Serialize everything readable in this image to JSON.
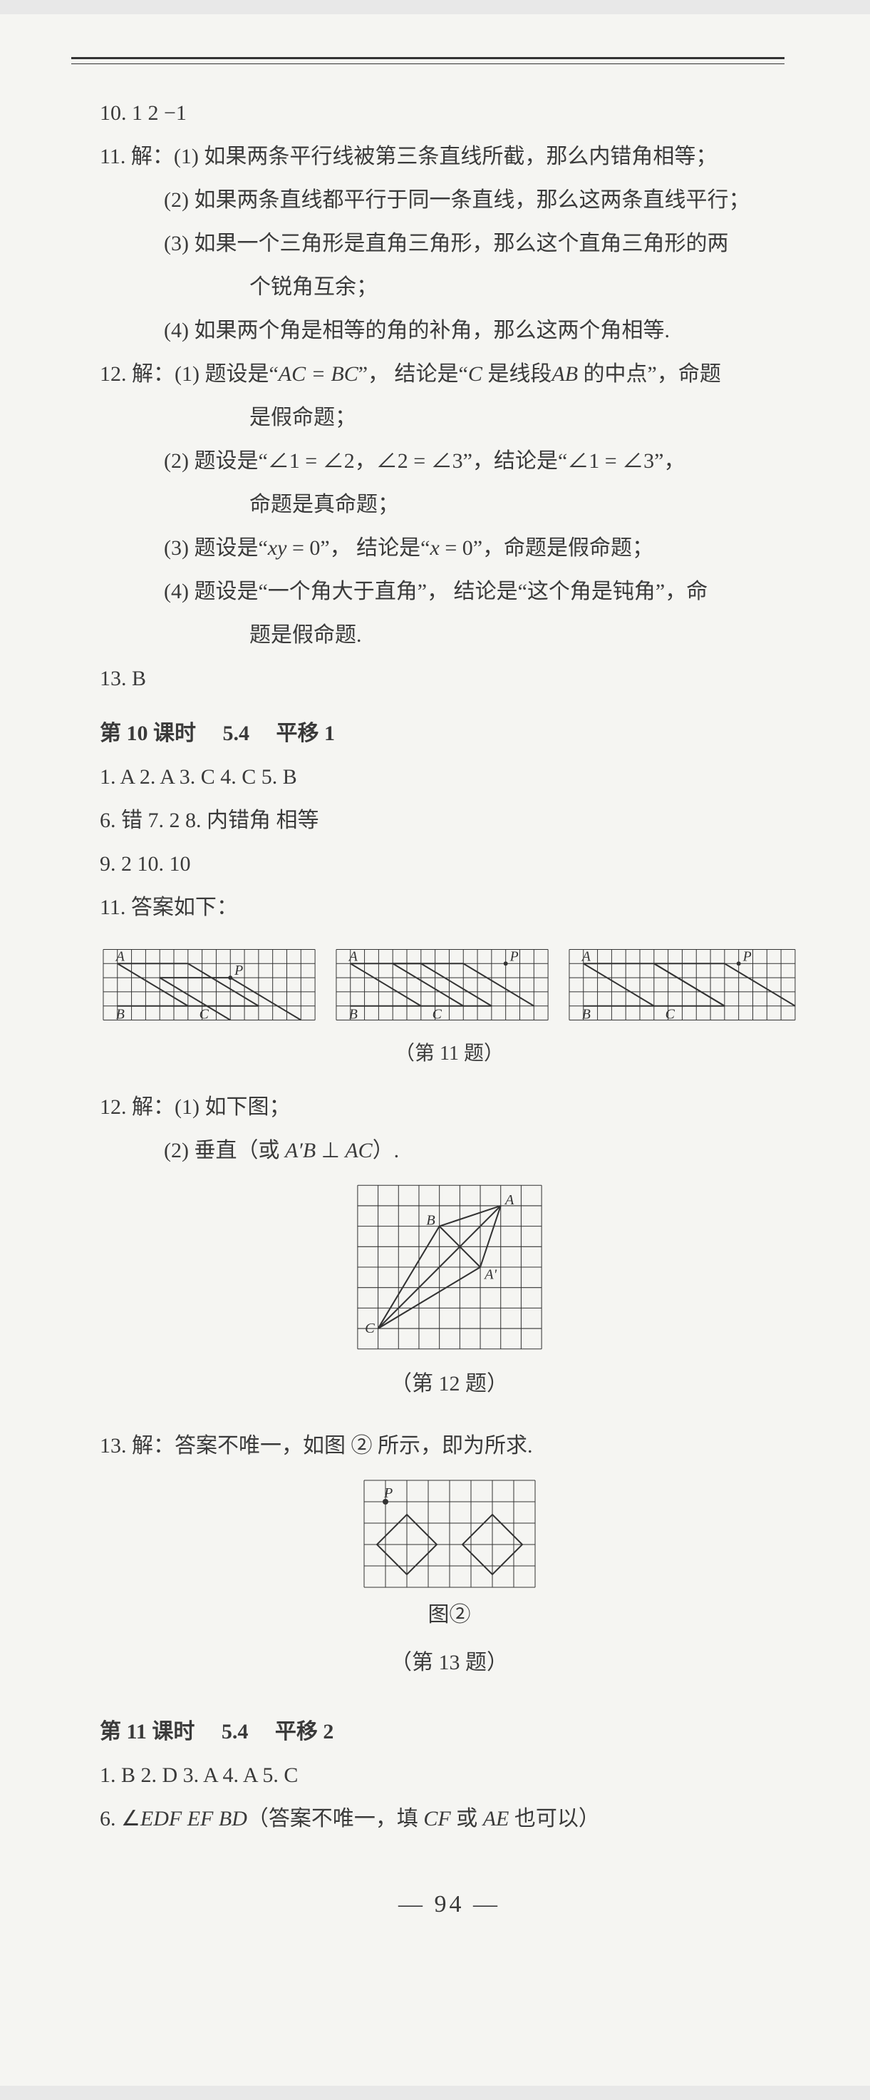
{
  "lines": {
    "l10": "10. 1   2   −1",
    "l11": "11. 解：(1) 如果两条平行线被第三条直线所截，那么内错角相等；",
    "l11_2": "(2) 如果两条直线都平行于同一条直线，那么这两条直线平行；",
    "l11_3": "(3) 如果一个三角形是直角三角形，那么这个直角三角形的两",
    "l11_3b": "个锐角互余；",
    "l11_4": "(4) 如果两个角是相等的角的补角，那么这两个角相等.",
    "l12a": "12. 解：(1) 题设是“",
    "l12a_eq": "AC = BC",
    "l12a_mid": "”，  结论是“",
    "l12a_c": "C",
    "l12a_mid2": " 是线段",
    "l12a_ab": "AB",
    "l12a_end": " 的中点”，命题",
    "l12a_2": "是假命题；",
    "l12b": "(2) 题设是“∠1 = ∠2，∠2 = ∠3”，结论是“∠1 = ∠3”，",
    "l12b_2": "命题是真命题；",
    "l12c": "(3) 题设是“",
    "l12c_xy": "xy",
    "l12c_mid": " = 0”，  结论是“",
    "l12c_x": "x",
    "l12c_end": " = 0”，命题是假命题；",
    "l12d": "(4) 题设是“一个角大于直角”，  结论是“这个角是钝角”，命",
    "l12d_2": "题是假命题.",
    "l13": "13. B",
    "sec10_pre": "第 10 课时",
    "sec10_num": "5.4",
    "sec10_title": "平移 1",
    "s10_1": "1. A   2. A   3. C   4. C   5. B",
    "s10_6": "6. 错    7. 2   8. 内错角    相等",
    "s10_9": "9. 2   10. 10",
    "s10_11": "11. 答案如下：",
    "cap11": "（第 11 题）",
    "s10_12": "12. 解：(1) 如下图；",
    "s10_12b_pre": "(2) 垂直（或 ",
    "s10_12b_ab": "A′B",
    "s10_12b_perp": " ⊥ ",
    "s10_12b_ac": "AC",
    "s10_12b_end": "）.",
    "cap12": "（第 12 题）",
    "s10_13": "13. 解：答案不唯一，如图 ② 所示，即为所求.",
    "cap13a": "图②",
    "cap13b": "（第 13 题）",
    "sec11_pre": "第 11 课时",
    "sec11_num": "5.4",
    "sec11_title": "平移 2",
    "s11_1": "1. B   2. D   3. A   4. A   5. C",
    "s11_6a": "6. ∠",
    "s11_6_edf": "EDF",
    "s11_6_sp1": "   ",
    "s11_6_ef": "EF",
    "s11_6_sp2": "   ",
    "s11_6_bd": "BD",
    "s11_6b": "（答案不唯一，填 ",
    "s11_6_cf": "CF",
    "s11_6c": " 或 ",
    "s11_6_ae": "AE",
    "s11_6d": " 也可以）",
    "pagenum": "— 94 —"
  },
  "grid11": {
    "cols": 15,
    "rows": 5,
    "cell": 20,
    "labels": {
      "A": [
        1,
        1
      ],
      "B": [
        1,
        4
      ],
      "C": [
        7,
        4
      ],
      "P": [
        9,
        2
      ]
    },
    "para": [
      [
        1,
        1
      ],
      [
        6,
        1
      ],
      [
        11,
        4
      ],
      [
        1,
        4
      ]
    ],
    "extra": []
  },
  "grid11_variants": [
    {
      "extra_tri": [
        [
          4,
          2
        ],
        [
          9,
          2
        ],
        [
          14,
          5
        ]
      ]
    },
    {
      "extra_tri": [
        [
          4,
          1
        ],
        [
          9,
          1
        ],
        [
          14,
          4
        ]
      ],
      "P_at": [
        12,
        1
      ]
    },
    {
      "extra_tri": [
        [
          6,
          1
        ],
        [
          11,
          1
        ],
        [
          16,
          4
        ]
      ],
      "P_at": [
        12,
        1
      ],
      "cols": 16
    }
  ],
  "grid12": {
    "cols": 9,
    "rows": 8,
    "cell": 28,
    "A": [
      7,
      1
    ],
    "B": [
      4,
      2
    ],
    "Ap": [
      6,
      4
    ],
    "C": [
      1,
      7
    ]
  },
  "grid13": {
    "cols": 8,
    "rows": 5,
    "cell": 30,
    "P": [
      1,
      1
    ],
    "diamonds": [
      [
        2,
        3
      ],
      [
        6,
        3
      ]
    ]
  },
  "style": {
    "grid_stroke": "#333",
    "grid_stroke_width": 1,
    "shape_stroke_width": 2,
    "label_fontsize": 20
  }
}
